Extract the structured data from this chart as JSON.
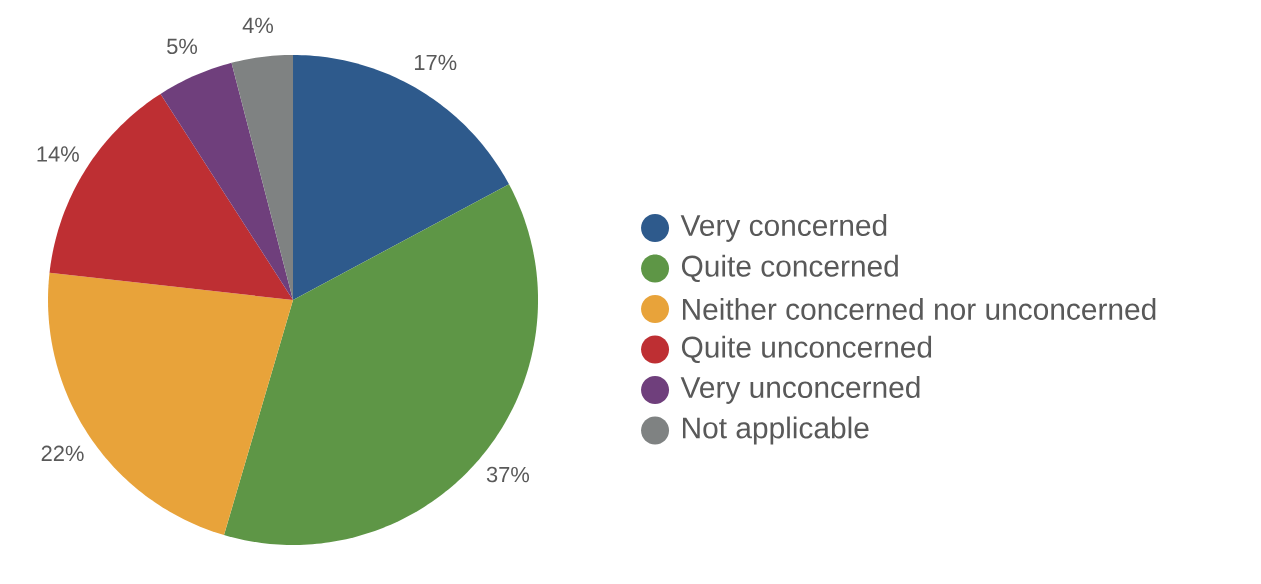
{
  "chart_data": {
    "type": "pie",
    "categories": [
      "Very concerned",
      "Quite concerned",
      "Neither concerned nor unconcerned",
      "Quite unconcerned",
      "Very unconcerned",
      "Not applicable"
    ],
    "values": [
      17,
      37,
      22,
      14,
      5,
      4
    ],
    "colors": [
      "#2e5a8c",
      "#5e9646",
      "#e8a33a",
      "#be2f33",
      "#6f3f7c",
      "#7f8282"
    ],
    "value_labels": [
      "17%",
      "37%",
      "22%",
      "14%",
      "5%",
      "4%"
    ],
    "legend": "right"
  }
}
